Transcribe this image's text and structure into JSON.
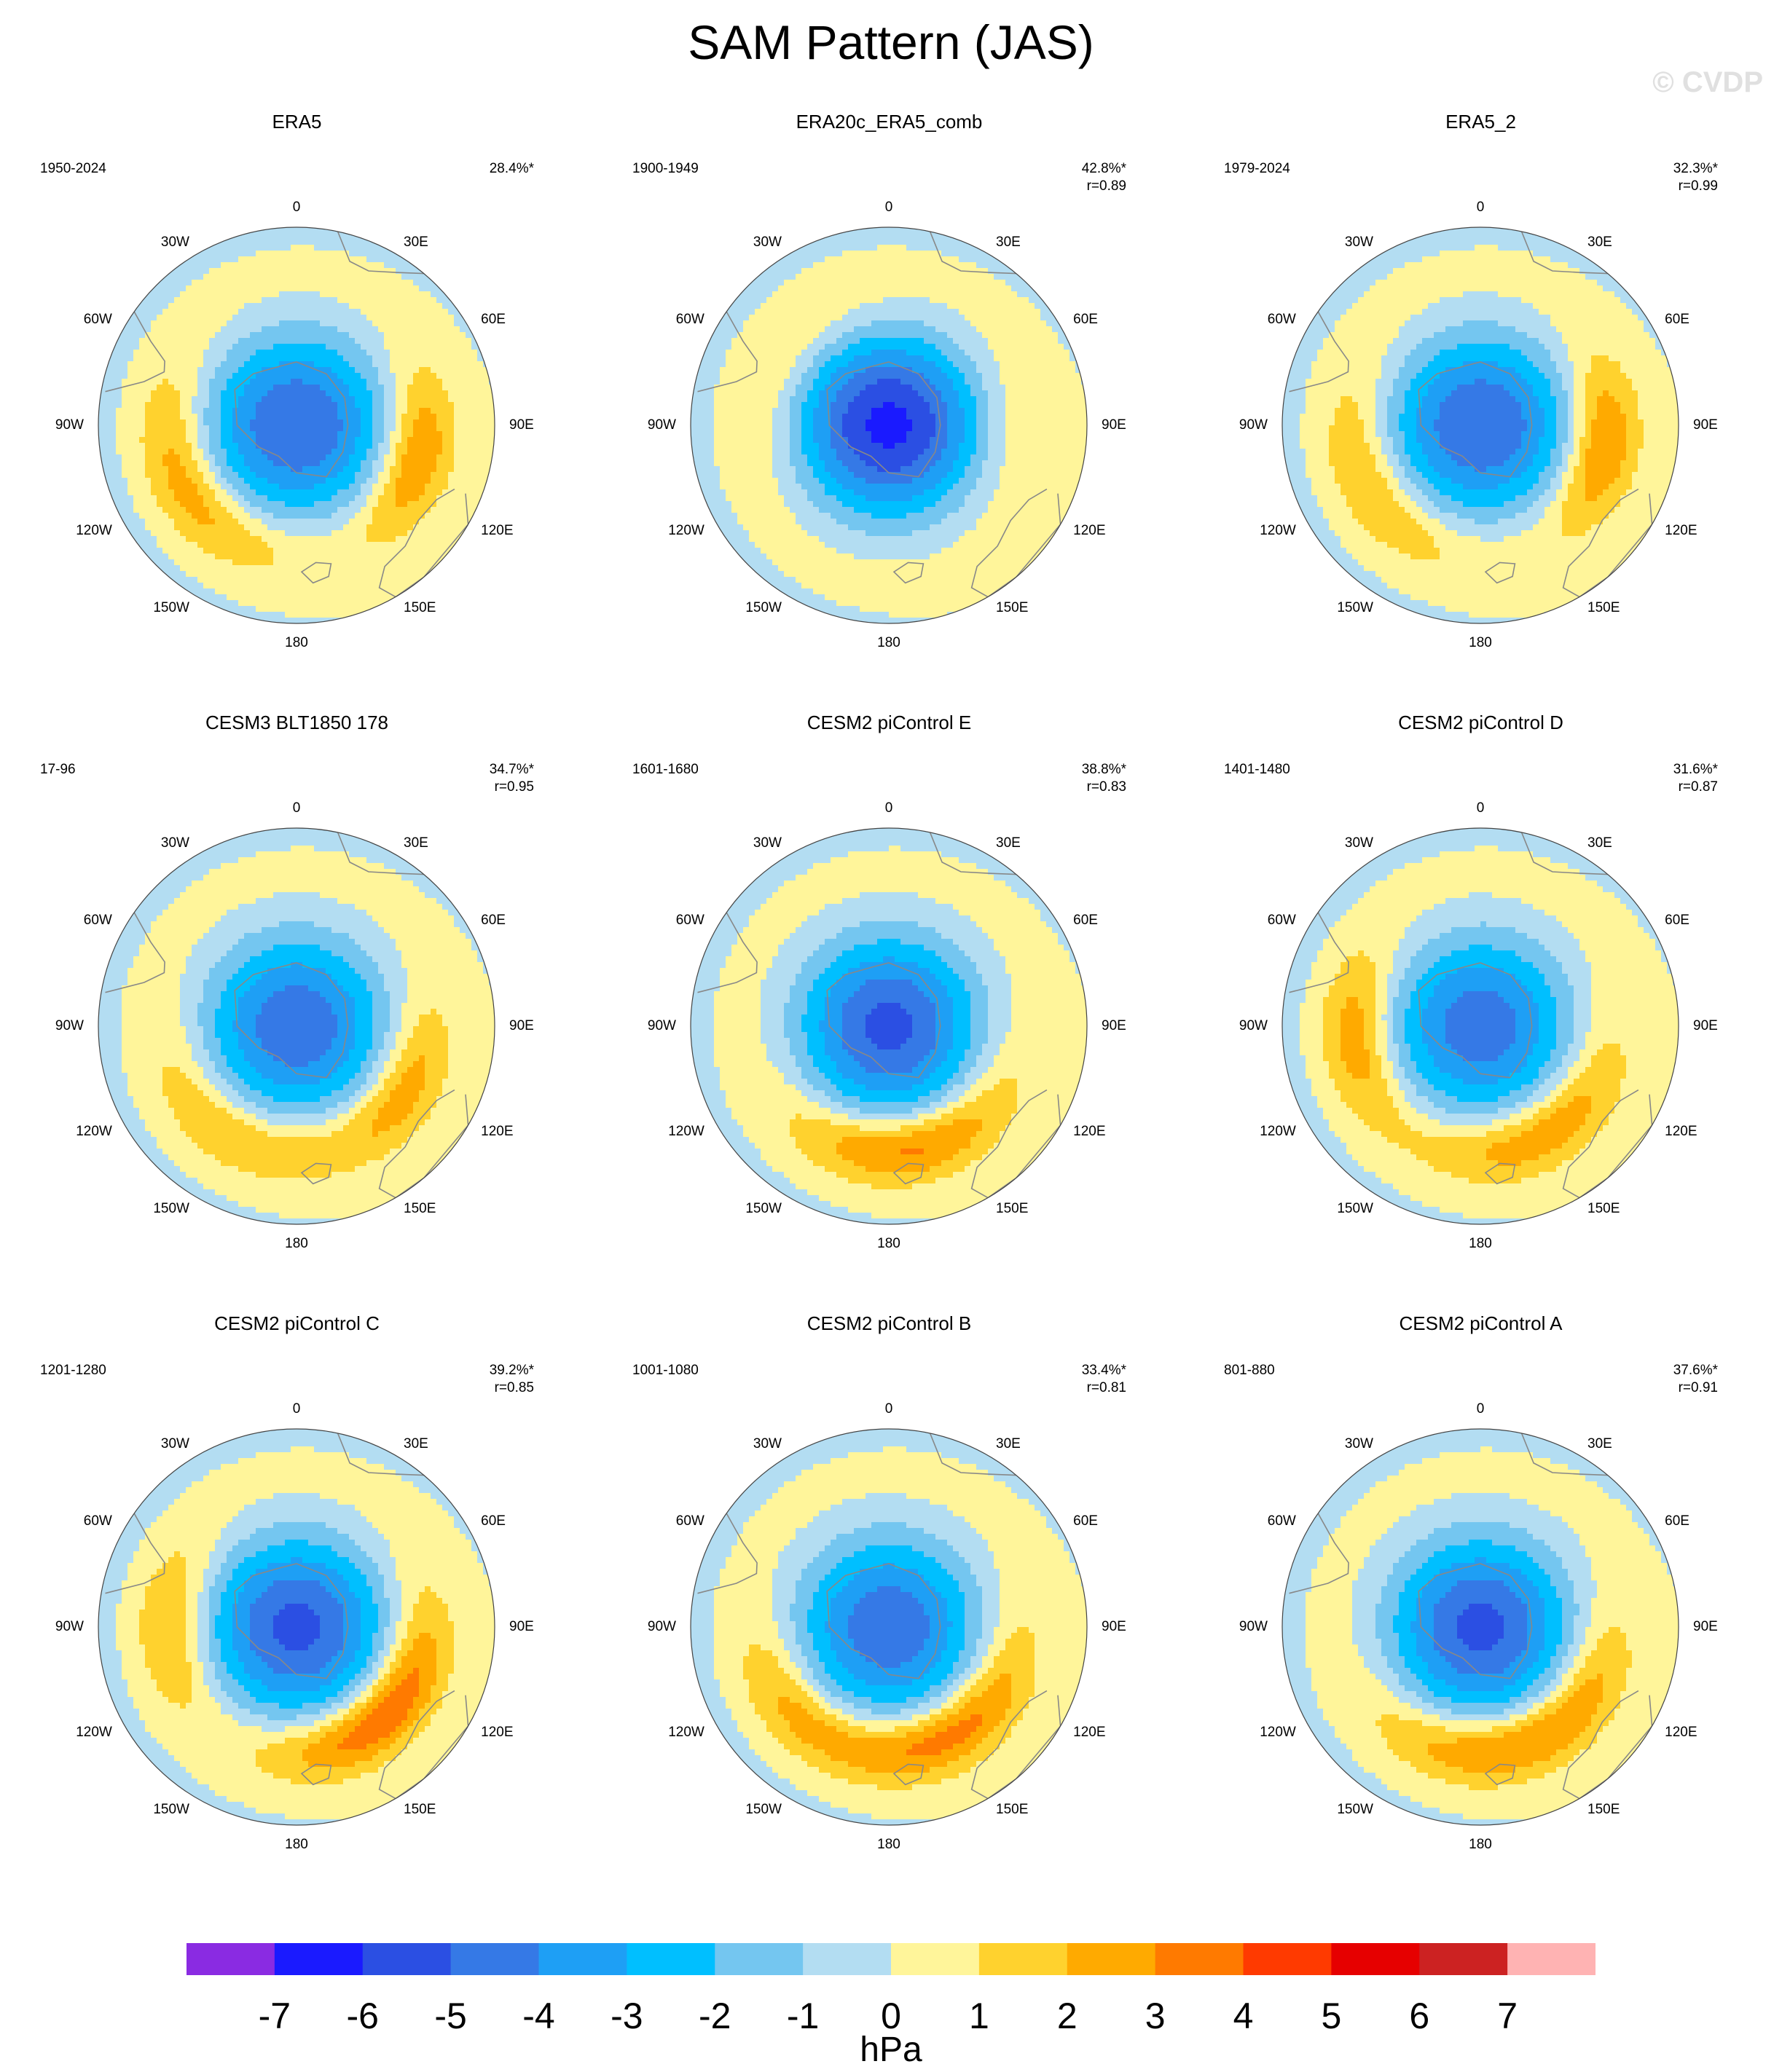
{
  "figure": {
    "title": "SAM Pattern (JAS)",
    "watermark": "© CVDP",
    "units": "hPa"
  },
  "colors": {
    "land": "#888888",
    "circle_edge": "#444444",
    "neg": [
      "#b3ddf2",
      "#74c6f0",
      "#00bfff",
      "#1e9ff5",
      "#3579e6",
      "#2b4fe3",
      "#1a1aff",
      "#8a2be2"
    ],
    "pos": [
      "#fff59a",
      "#ffd22e",
      "#ffaa00",
      "#ff7a00",
      "#ff3a00",
      "#e60000",
      "#cc2222",
      "#ffb3b3"
    ]
  },
  "lon_labels": [
    "0",
    "30E",
    "60E",
    "90E",
    "120E",
    "150E",
    "180",
    "150W",
    "120W",
    "90W",
    "60W",
    "30W"
  ],
  "chart_data": {
    "type": "polar-contour",
    "projection": "polar stereographic, Southern Hemisphere",
    "variable": "sea level pressure regression",
    "contour_levels": [
      -7,
      -6,
      -5,
      -4,
      -3,
      -2,
      -1,
      0,
      1,
      2,
      3,
      4,
      5,
      6,
      7
    ],
    "colorbar_labels": [
      "-7",
      "-6",
      "-5",
      "-4",
      "-3",
      "-2",
      "-1",
      "0",
      "1",
      "2",
      "3",
      "4",
      "5",
      "6",
      "7"
    ],
    "panels": [
      {
        "title": "ERA5",
        "years": "1950-2024",
        "pct_var": "28.4%*",
        "r": "",
        "center_min": -5,
        "w3_max": 2.5,
        "w3_lon": 240,
        "w1_max": 3,
        "w1_lon": 105
      },
      {
        "title": "ERA20c_ERA5_comb",
        "years": "1900-1949",
        "pct_var": "42.8%*",
        "r": "r=0.89",
        "center_min": -6.3,
        "w3_max": 1,
        "w3_lon": 300,
        "w1_max": 0.7,
        "w1_lon": 90
      },
      {
        "title": "ERA5_2",
        "years": "1979-2024",
        "pct_var": "32.3%*",
        "r": "r=0.99",
        "center_min": -5,
        "w3_max": 2,
        "w3_lon": 240,
        "w1_max": 3.2,
        "w1_lon": 100
      },
      {
        "title": "CESM3 BLT1850 178",
        "years": "17-96",
        "pct_var": "34.7%*",
        "r": "r=0.95",
        "center_min": -4.8,
        "w3_max": 2,
        "w3_lon": 210,
        "w1_max": 2.5,
        "w1_lon": 120
      },
      {
        "title": "CESM2 piControl E",
        "years": "1601-1680",
        "pct_var": "38.8%*",
        "r": "r=0.83",
        "center_min": -5.3,
        "w3_max": 3.3,
        "w3_lon": 170,
        "w1_max": 0,
        "w1_lon": 90
      },
      {
        "title": "CESM2 piControl D",
        "years": "1401-1480",
        "pct_var": "31.6%*",
        "r": "r=0.87",
        "center_min": -4.6,
        "w3_max": 2.8,
        "w3_lon": 150,
        "w1_max": 2.6,
        "w1_lon": 265
      },
      {
        "title": "CESM2 piControl C",
        "years": "1201-1280",
        "pct_var": "39.2%*",
        "r": "r=0.85",
        "center_min": -5.3,
        "w3_max": 4,
        "w3_lon": 135,
        "w1_max": 2.2,
        "w1_lon": 270
      },
      {
        "title": "CESM2 piControl B",
        "years": "1001-1080",
        "pct_var": "33.4%*",
        "r": "r=0.81",
        "center_min": -4.8,
        "w3_max": 3.5,
        "w3_lon": 150,
        "w1_max": 2,
        "w1_lon": 230
      },
      {
        "title": "CESM2 piControl A",
        "years": "801-880",
        "pct_var": "37.6%*",
        "r": "r=0.91",
        "center_min": -5.3,
        "w3_max": 2.9,
        "w3_lon": 175,
        "w1_max": 1.5,
        "w1_lon": 120
      }
    ]
  }
}
